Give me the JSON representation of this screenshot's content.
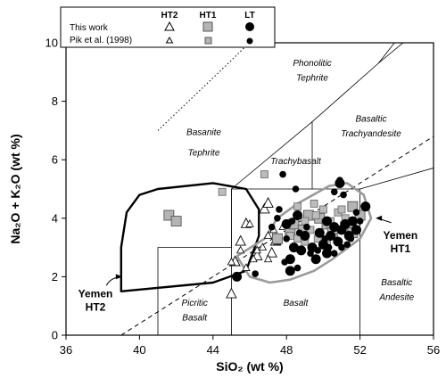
{
  "chart_data": {
    "type": "scatter",
    "xlabel": "SiO₂ (wt %)",
    "ylabel": "Na₂O + K₂O (wt %)",
    "xlim": [
      36,
      56
    ],
    "ylim": [
      0,
      10
    ],
    "xticks": [
      "36",
      "40",
      "44",
      "48",
      "52",
      "56"
    ],
    "yticks": [
      "0",
      "2",
      "4",
      "6",
      "8",
      "10"
    ],
    "legend": {
      "placement": "top",
      "columns": [
        "HT2",
        "HT1",
        "LT"
      ],
      "rows": [
        "This work",
        "Pik et al. (1998)"
      ]
    },
    "tas_boundaries": [
      [
        [
          41,
          0
        ],
        [
          41,
          3
        ],
        [
          45,
          3
        ],
        [
          45,
          5
        ]
      ],
      [
        [
          45,
          0
        ],
        [
          45,
          5
        ],
        [
          52,
          5
        ],
        [
          52,
          0
        ]
      ],
      [
        [
          49.4,
          5
        ],
        [
          49.4,
          7.3
        ]
      ],
      [
        [
          45,
          5
        ],
        [
          49.4,
          7.3
        ],
        [
          53,
          9.3
        ],
        [
          57.6,
          11.7
        ]
      ],
      [
        [
          52,
          5
        ],
        [
          57,
          5.9
        ]
      ],
      [
        [
          53,
          9.3
        ],
        [
          54.5,
          10.5
        ]
      ],
      [
        [
          57.6,
          11.7
        ],
        [
          58,
          12
        ]
      ]
    ],
    "dotted_line": [
      [
        41,
        7
      ],
      [
        45,
        9.4
      ],
      [
        48.4,
        11.5
      ]
    ],
    "dashed_line": [
      [
        39,
        0
      ],
      [
        56,
        6.8
      ]
    ],
    "fields": [
      {
        "label": "Phonolitic",
        "x": 49.4,
        "y": 9.2
      },
      {
        "label": "Tephrite",
        "x": 49.4,
        "y": 8.7
      },
      {
        "label": "Basaltic",
        "x": 52.6,
        "y": 7.3
      },
      {
        "label": "Trachyandesite",
        "x": 52.6,
        "y": 6.8
      },
      {
        "label": "Basanite",
        "x": 43.5,
        "y": 6.85
      },
      {
        "label": "Tephrite",
        "x": 43.5,
        "y": 6.15
      },
      {
        "label": "Trachybasalt",
        "x": 48.5,
        "y": 5.85
      },
      {
        "label": "Picritic",
        "x": 43.0,
        "y": 1.0
      },
      {
        "label": "Basalt",
        "x": 43.0,
        "y": 0.5
      },
      {
        "label": "Basalt",
        "x": 48.5,
        "y": 1.0
      },
      {
        "label": "Basaltic",
        "x": 54.0,
        "y": 1.7
      },
      {
        "label": "Andesite",
        "x": 54.0,
        "y": 1.2
      }
    ],
    "annotations": [
      {
        "lines": [
          "Yemen",
          "HT2"
        ],
        "x": 37.6,
        "y": 1.3
      },
      {
        "lines": [
          "Yemen",
          "HT1"
        ],
        "x": 54.2,
        "y": 3.3
      }
    ],
    "yemen_ht2_field": [
      [
        39,
        1.5
      ],
      [
        44,
        1.8
      ],
      [
        45.8,
        2.2
      ],
      [
        46.5,
        3.4
      ],
      [
        46.5,
        4.3
      ],
      [
        45.8,
        5.0
      ],
      [
        44,
        5.2
      ],
      [
        41,
        5.0
      ],
      [
        40,
        4.8
      ],
      [
        39.3,
        4.2
      ],
      [
        39,
        3
      ],
      [
        39,
        1.5
      ]
    ],
    "yemen_ht1_field": [
      [
        46.8,
        3.3
      ],
      [
        47.5,
        4.0
      ],
      [
        48.6,
        4.5
      ],
      [
        50.3,
        5.1
      ],
      [
        51.3,
        5.2
      ],
      [
        52.2,
        4.8
      ],
      [
        52.6,
        4.0
      ],
      [
        52,
        3.3
      ],
      [
        50.5,
        2.6
      ],
      [
        49.5,
        2.2
      ],
      [
        48.2,
        1.9
      ],
      [
        47.1,
        1.8
      ],
      [
        46,
        2.0
      ],
      [
        45.3,
        2.7
      ],
      [
        46.8,
        3.3
      ]
    ],
    "series": [
      {
        "name": "This work HT2",
        "marker": "triangle-large",
        "points": [
          [
            45,
            1.4
          ],
          [
            45.2,
            2.5
          ],
          [
            45.5,
            3.2
          ],
          [
            45.8,
            3.8
          ],
          [
            46.8,
            4.3
          ],
          [
            47,
            4.5
          ],
          [
            47.4,
            3.2
          ],
          [
            46.4,
            2.7
          ],
          [
            47.2,
            2.8
          ]
        ]
      },
      {
        "name": "Pik et al. (1998) HT2",
        "marker": "triangle-small",
        "points": [
          [
            45,
            2.5
          ],
          [
            45.8,
            2.3
          ],
          [
            46.2,
            2.6
          ],
          [
            46.4,
            2.9
          ],
          [
            46.7,
            3.0
          ],
          [
            47.0,
            3.4
          ],
          [
            47.3,
            3.6
          ],
          [
            47.5,
            3.2
          ],
          [
            47.8,
            3.7
          ],
          [
            46.0,
            3.8
          ],
          [
            47.0,
            2.6
          ],
          [
            45.5,
            2.9
          ]
        ]
      },
      {
        "name": "This work HT1",
        "marker": "square-large",
        "points": [
          [
            41.6,
            4.1
          ],
          [
            42.0,
            3.9
          ],
          [
            47.5,
            3.3
          ],
          [
            48.2,
            3.5
          ],
          [
            48.4,
            3.8
          ],
          [
            48.9,
            3.6
          ],
          [
            49.8,
            4.0
          ],
          [
            50.2,
            3.8
          ],
          [
            50.5,
            3.5
          ],
          [
            51.2,
            3.7
          ],
          [
            51.6,
            3.5
          ],
          [
            52,
            4.1
          ],
          [
            49.2,
            4.1
          ],
          [
            51.6,
            4.4
          ]
        ]
      },
      {
        "name": "Pik et al. (1998) HT1",
        "marker": "square-small",
        "points": [
          [
            44.5,
            4.9
          ],
          [
            46.8,
            5.5
          ],
          [
            48.2,
            3.4
          ],
          [
            48.6,
            3.3
          ],
          [
            49.0,
            3.2
          ],
          [
            49.3,
            3.6
          ],
          [
            49.6,
            4.1
          ],
          [
            50.0,
            4.3
          ],
          [
            50.4,
            3.9
          ],
          [
            50.8,
            4.2
          ],
          [
            51.2,
            4.0
          ],
          [
            51.6,
            3.8
          ],
          [
            49.7,
            3.3
          ],
          [
            50.2,
            3.1
          ],
          [
            48.6,
            4.4
          ],
          [
            49.0,
            3.9
          ],
          [
            50.7,
            3.6
          ],
          [
            49.5,
            4.5
          ],
          [
            51.0,
            4.3
          ]
        ]
      },
      {
        "name": "This work LT",
        "marker": "circle-large",
        "points": [
          [
            45.3,
            2.0
          ],
          [
            48.2,
            2.6
          ],
          [
            48.4,
            3.0
          ],
          [
            48.8,
            2.9
          ],
          [
            49.0,
            3.4
          ],
          [
            49.4,
            3.0
          ],
          [
            49.6,
            2.6
          ],
          [
            49.8,
            3.5
          ],
          [
            50.0,
            3.1
          ],
          [
            50.2,
            2.8
          ],
          [
            50.4,
            3.4
          ],
          [
            50.6,
            3.7
          ],
          [
            50.8,
            3.2
          ],
          [
            51.0,
            3.6
          ],
          [
            51.2,
            3.8
          ],
          [
            51.4,
            3.4
          ],
          [
            51.6,
            3.9
          ],
          [
            51.8,
            3.6
          ],
          [
            52.3,
            4.4
          ],
          [
            50.9,
            5.2
          ],
          [
            48.6,
            4.1
          ],
          [
            48.0,
            3.8
          ],
          [
            48.2,
            2.2
          ],
          [
            50.2,
            3.9
          ]
        ]
      },
      {
        "name": "Pik et al. (1998) LT",
        "marker": "circle-small",
        "points": [
          [
            47.8,
            5.5
          ],
          [
            46.3,
            2.1
          ],
          [
            47.2,
            3.7
          ],
          [
            47.5,
            4.0
          ],
          [
            47.6,
            4.3
          ],
          [
            48.0,
            3.3
          ],
          [
            48.3,
            3.9
          ],
          [
            48.7,
            3.5
          ],
          [
            49.1,
            3.7
          ],
          [
            49.3,
            2.8
          ],
          [
            49.7,
            2.9
          ],
          [
            50.1,
            3.3
          ],
          [
            50.3,
            3.0
          ],
          [
            50.6,
            2.8
          ],
          [
            51.0,
            3.0
          ],
          [
            51.3,
            3.1
          ],
          [
            51.5,
            3.3
          ],
          [
            51.1,
            4.8
          ],
          [
            50.6,
            4.9
          ],
          [
            50.9,
            5.3
          ],
          [
            51.8,
            4.2
          ],
          [
            52.0,
            3.9
          ],
          [
            48.6,
            2.3
          ],
          [
            47.9,
            2.5
          ],
          [
            48.5,
            5.0
          ]
        ]
      }
    ]
  }
}
